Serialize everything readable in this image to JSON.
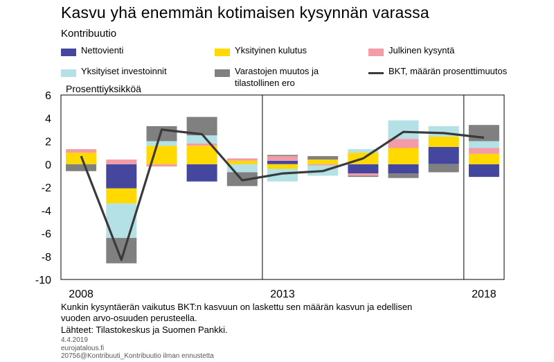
{
  "header": {
    "title": "Kasvu yhä enemmän kotimaisen kysynnän varassa",
    "subtitle": "Kontribuutio"
  },
  "colors": {
    "nettovienti": "#45479e",
    "yksityinen_kulutus": "#ffd900",
    "julkinen_kysynta": "#f39ba6",
    "yksityiset_investoinnit": "#b3e1e5",
    "varastot": "#808080",
    "bkt_line": "#3a3a3a"
  },
  "legend": [
    {
      "label": "Nettovienti",
      "kind": "bar",
      "color": "#45479e"
    },
    {
      "label": "Yksityinen kulutus",
      "kind": "bar",
      "color": "#ffd900"
    },
    {
      "label": "Julkinen kysyntä",
      "kind": "bar",
      "color": "#f39ba6"
    },
    {
      "label": "Yksityiset investoinnit",
      "kind": "bar",
      "color": "#b3e1e5"
    },
    {
      "label": "Varastojen muutos ja\ntilastollinen ero",
      "kind": "bar",
      "color": "#808080"
    },
    {
      "label": "BKT, määrän prosenttimuutos",
      "kind": "line",
      "color": "#3a3a3a"
    }
  ],
  "notes": {
    "line1": "Kunkin kysyntäerän vaikutus BKT:n kasvuun on laskettu sen määrän kasvun ja edellisen",
    "line2": "vuoden arvo-osuuden perusteella.",
    "sources": "Lähteet: Tilastokeskus ja Suomen Pankki.",
    "date": "4.4.2019",
    "site": "eurojatalous.fi",
    "file": "20756@Kontribuuti_Kontribuutio ilman ennustetta"
  },
  "chart_data": {
    "type": "bar",
    "stacked": true,
    "ylabel": "Prosenttiyksikköä",
    "ylim": [
      -10,
      6
    ],
    "yticks": [
      "6",
      "4",
      "2",
      "0",
      "-2",
      "-4",
      "-6",
      "-8",
      "-10"
    ],
    "x_labels": [
      "2008",
      "2013",
      "2018"
    ],
    "categories": [
      "2008",
      "2009",
      "2010",
      "2011",
      "2012",
      "2013",
      "2014",
      "2015",
      "2016",
      "2017",
      "2018"
    ],
    "series": [
      {
        "name": "Nettovienti",
        "values": [
          0.0,
          -2.1,
          0.0,
          -1.5,
          0.0,
          0.3,
          0.0,
          -0.8,
          -0.8,
          1.5,
          -1.1
        ]
      },
      {
        "name": "Yksityinen kulutus",
        "values": [
          1.0,
          -1.3,
          1.6,
          1.6,
          0.3,
          -0.4,
          0.4,
          1.0,
          1.4,
          0.9,
          0.9
        ]
      },
      {
        "name": "Julkinen kysyntä",
        "values": [
          0.3,
          0.4,
          -0.2,
          0.2,
          0.2,
          0.4,
          -0.1,
          -0.2,
          0.8,
          0.0,
          0.5
        ]
      },
      {
        "name": "Yksityiset investoinnit",
        "values": [
          0.0,
          -3.0,
          0.4,
          0.7,
          -0.7,
          -1.1,
          -0.9,
          0.3,
          1.6,
          0.9,
          0.6
        ]
      },
      {
        "name": "Varastojen muutos ja tilastollinen ero",
        "values": [
          -0.6,
          -2.2,
          1.3,
          1.6,
          -1.2,
          0.1,
          0.3,
          -0.1,
          -0.4,
          -0.7,
          1.4
        ]
      }
    ],
    "line": {
      "name": "BKT, määrän prosenttimuutos",
      "values": [
        0.7,
        -8.3,
        3.0,
        2.6,
        -1.4,
        -0.8,
        -0.6,
        0.5,
        2.8,
        2.7,
        2.3
      ]
    },
    "grid": false,
    "legend_position": "top"
  }
}
